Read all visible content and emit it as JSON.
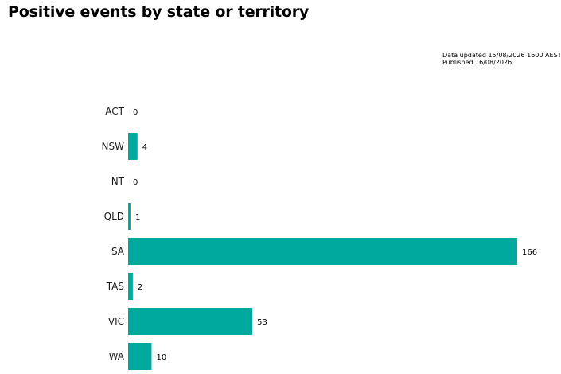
{
  "header": {
    "title": "Positive events by state or territory"
  },
  "meta": {
    "updated": "Data updated 15/08/2026 1600 AEST",
    "published": "Published 16/08/2026"
  },
  "chart_data": {
    "type": "bar",
    "orientation": "horizontal",
    "title": "Positive events by state or territory",
    "categories": [
      "ACT",
      "NSW",
      "NT",
      "QLD",
      "SA",
      "TAS",
      "VIC",
      "WA"
    ],
    "values": [
      0,
      4,
      0,
      1,
      166,
      2,
      53,
      10
    ],
    "xlim": [
      0,
      166
    ],
    "grid": false,
    "color": "#00a99d"
  }
}
